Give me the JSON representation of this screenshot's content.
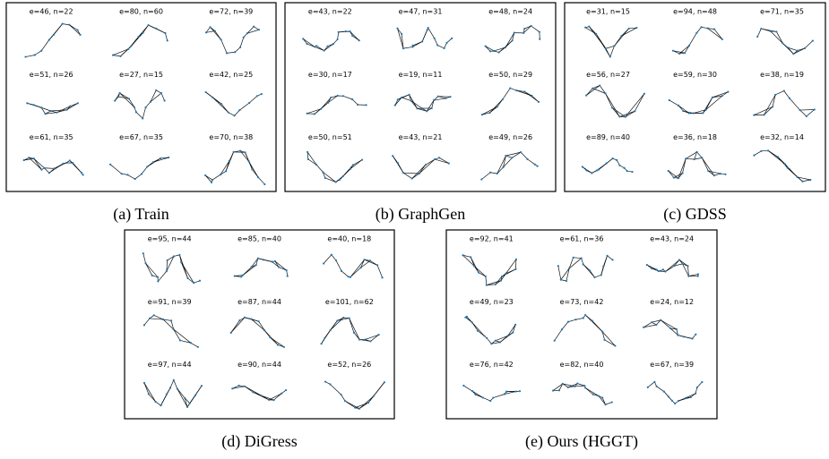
{
  "panels": [
    {
      "caption": "(a) Train",
      "graphs": [
        "e=46, n=22",
        "e=80, n=60",
        "e=72, n=39",
        "e=51, n=26",
        "e=27, n=15",
        "e=42, n=25",
        "e=61, n=35",
        "e=67, n=35",
        "e=70, n=38"
      ]
    },
    {
      "caption": "(b) GraphGen",
      "graphs": [
        "e=43, n=22",
        "e=47, n=31",
        "e=48, n=24",
        "e=30, n=17",
        "e=19, n=11",
        "e=50, n=29",
        "e=50, n=51",
        "e=43, n=21",
        "e=49, n=26"
      ]
    },
    {
      "caption": "(c) GDSS",
      "graphs": [
        "e=31, n=15",
        "e=94, n=48",
        "e=71, n=35",
        "e=56, n=27",
        "e=59, n=30",
        "e=38, n=19",
        "e=89, n=40",
        "e=36, n=18",
        "e=32, n=14"
      ]
    },
    {
      "caption": "(d) DiGress",
      "graphs": [
        "e=95, n=44",
        "e=85, n=40",
        "e=40, n=18",
        "e=91, n=39",
        "e=87, n=44",
        "e=101, n=62",
        "e=97, n=44",
        "e=90, n=44",
        "e=52, n=26"
      ]
    },
    {
      "caption": "(e) Ours (HGGT)",
      "graphs": [
        "e=92, n=41",
        "e=61, n=36",
        "e=43, n=24",
        "e=49, n=23",
        "e=73, n=42",
        "e=24, n=12",
        "e=76, n=42",
        "e=82, n=40",
        "e=67, n=39"
      ]
    }
  ]
}
